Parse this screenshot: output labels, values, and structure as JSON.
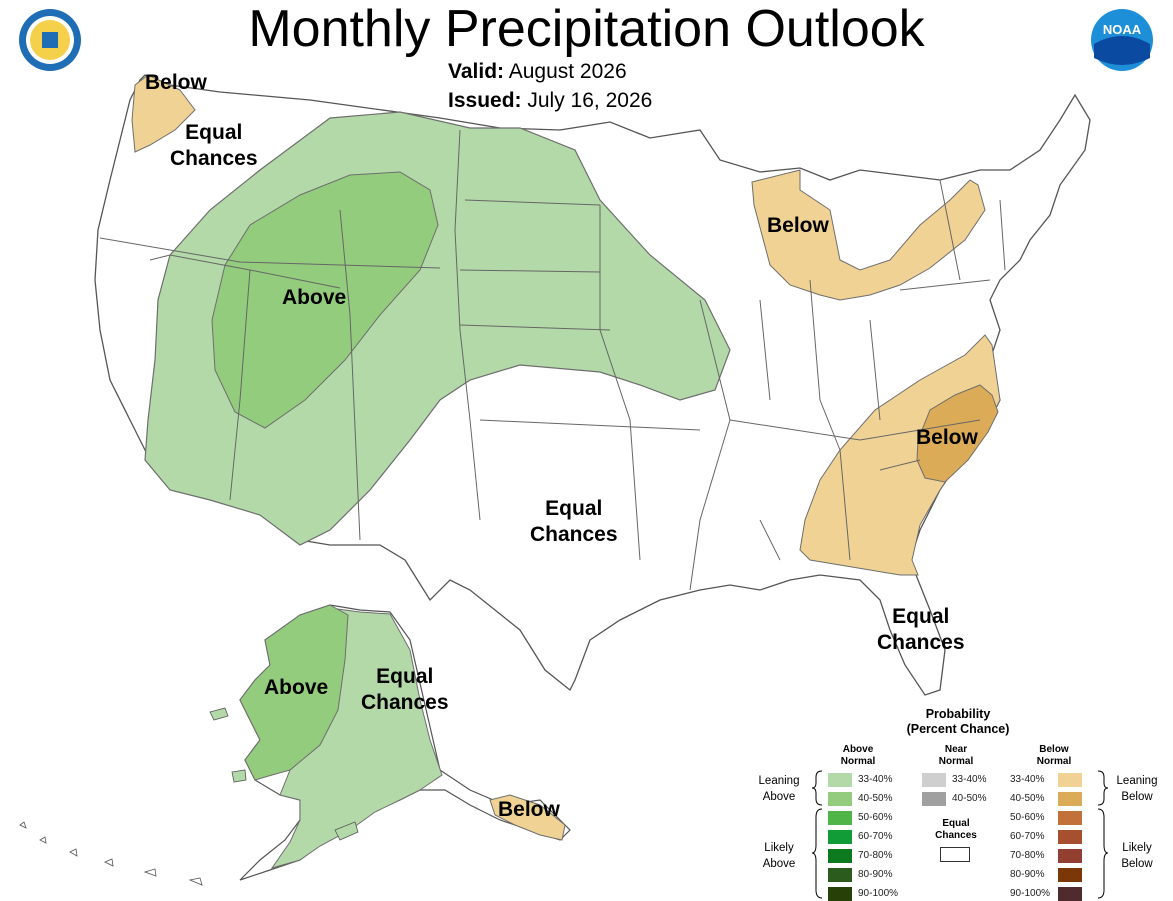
{
  "title": "Monthly Precipitation Outlook",
  "valid": {
    "label": "Valid:",
    "value": "August 2026"
  },
  "issued": {
    "label": "Issued:",
    "value": "July 16, 2026"
  },
  "map": {
    "regions": [
      {
        "id": "northwest",
        "category": "Below",
        "chance": "33-40%"
      },
      {
        "id": "northwest-ec",
        "category": "Equal Chances"
      },
      {
        "id": "west",
        "category": "Above",
        "chance": "33-40%"
      },
      {
        "id": "west-core",
        "category": "Above",
        "chance": "40-50%"
      },
      {
        "id": "great-lakes",
        "category": "Below",
        "chance": "33-40%"
      },
      {
        "id": "southeast",
        "category": "Below",
        "chance": "33-40%"
      },
      {
        "id": "carolinas",
        "category": "Below",
        "chance": "40-50%"
      },
      {
        "id": "south",
        "category": "Equal Chances"
      },
      {
        "id": "florida",
        "category": "Equal Chances"
      },
      {
        "id": "alaska-west",
        "category": "Above",
        "chance": "40-50%"
      },
      {
        "id": "alaska-central",
        "category": "Above",
        "chance": "33-40%"
      },
      {
        "id": "alaska-east",
        "category": "Equal Chances"
      },
      {
        "id": "alaska-southeast",
        "category": "Below",
        "chance": "33-40%"
      }
    ],
    "labels": {
      "nw_below": "Below",
      "nw_equal": "Equal\nChances",
      "west_above": "Above",
      "gl_below": "Below",
      "se_below": "Below",
      "south_equal": "Equal\nChances",
      "fl_equal": "Equal\nChances",
      "ak_above": "Above",
      "ak_equal": "Equal\nChances",
      "ak_below": "Below"
    }
  },
  "legend": {
    "title": "Probability\n(Percent Chance)",
    "above_header": "Above\nNormal",
    "near_header": "Near\nNormal",
    "below_header": "Below\nNormal",
    "equal_header": "Equal\nChances",
    "leaning_above": "Leaning\nAbove",
    "likely_above": "Likely\nAbove",
    "leaning_below": "Leaning\nBelow",
    "likely_below": "Likely\nBelow",
    "above": [
      {
        "label": "33-40%",
        "color": "#b3d9a8"
      },
      {
        "label": "40-50%",
        "color": "#93cc7d"
      },
      {
        "label": "50-60%",
        "color": "#4fb548"
      },
      {
        "label": "60-70%",
        "color": "#129c38"
      },
      {
        "label": "70-80%",
        "color": "#0d7a1f"
      },
      {
        "label": "80-90%",
        "color": "#2c5b1e"
      },
      {
        "label": "90-100%",
        "color": "#264008"
      }
    ],
    "near": [
      {
        "label": "33-40%",
        "color": "#cfcfcf"
      },
      {
        "label": "40-50%",
        "color": "#a0a0a0"
      }
    ],
    "below": [
      {
        "label": "33-40%",
        "color": "#f0d394"
      },
      {
        "label": "40-50%",
        "color": "#dcab57"
      },
      {
        "label": "50-60%",
        "color": "#c2713a"
      },
      {
        "label": "60-70%",
        "color": "#a6502f"
      },
      {
        "label": "70-80%",
        "color": "#933f32"
      },
      {
        "label": "80-90%",
        "color": "#7b3806"
      },
      {
        "label": "90-100%",
        "color": "#4f2b2d"
      }
    ]
  },
  "logos": {
    "left": "department-of-commerce-seal",
    "right": {
      "name": "noaa-logo",
      "text": "NOAA"
    }
  }
}
